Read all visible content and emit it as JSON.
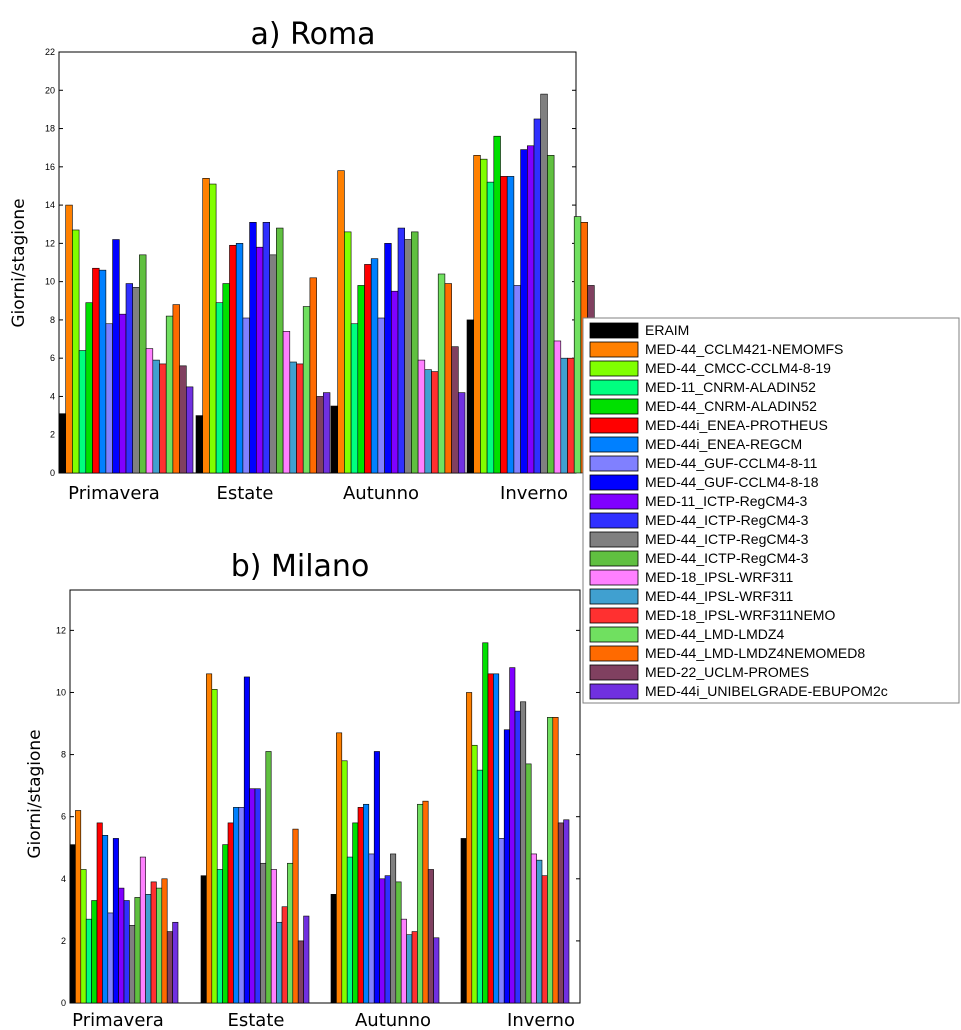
{
  "chart_data": [
    {
      "type": "bar",
      "title": "a) Roma",
      "ylabel": "Giorni/stagione",
      "xlabel": "",
      "ylim": [
        0,
        22
      ],
      "yticks": [
        0,
        2,
        4,
        6,
        8,
        10,
        12,
        14,
        16,
        18,
        20,
        22
      ],
      "categories": [
        "Primavera",
        "Estate",
        "Autunno",
        "Inverno"
      ],
      "series_values": [
        [
          3.1,
          3.0,
          3.5,
          8.0
        ],
        [
          14.0,
          15.4,
          15.8,
          16.6
        ],
        [
          12.7,
          15.1,
          12.6,
          16.4
        ],
        [
          6.4,
          8.9,
          7.8,
          15.2
        ],
        [
          8.9,
          9.9,
          9.8,
          17.6
        ],
        [
          10.7,
          11.9,
          10.9,
          15.5
        ],
        [
          10.6,
          12.0,
          11.2,
          15.5
        ],
        [
          7.8,
          8.1,
          8.1,
          9.8
        ],
        [
          12.2,
          13.1,
          12.0,
          16.9
        ],
        [
          8.3,
          11.8,
          9.5,
          17.1
        ],
        [
          9.9,
          13.1,
          12.8,
          18.5
        ],
        [
          9.7,
          11.4,
          12.2,
          19.8
        ],
        [
          11.4,
          12.8,
          12.6,
          16.6
        ],
        [
          6.5,
          7.4,
          5.9,
          6.9
        ],
        [
          5.9,
          5.8,
          5.4,
          6.0
        ],
        [
          5.7,
          5.7,
          5.3,
          6.0
        ],
        [
          8.2,
          8.7,
          10.4,
          13.4
        ],
        [
          8.8,
          10.2,
          9.9,
          13.1
        ],
        [
          5.6,
          4.0,
          6.6,
          9.8
        ],
        [
          4.5,
          4.2,
          4.2,
          null
        ]
      ]
    },
    {
      "type": "bar",
      "title": "b) Milano",
      "ylabel": "Giorni/stagione",
      "xlabel": "",
      "ylim": [
        0,
        13.3
      ],
      "yticks": [
        0,
        2,
        4,
        6,
        8,
        10,
        12
      ],
      "categories": [
        "Primavera",
        "Estate",
        "Autunno",
        "Inverno"
      ],
      "series_values": [
        [
          5.1,
          4.1,
          3.5,
          5.3
        ],
        [
          6.2,
          10.6,
          8.7,
          10.0
        ],
        [
          4.3,
          10.1,
          7.8,
          8.3
        ],
        [
          2.7,
          4.3,
          4.7,
          7.5
        ],
        [
          3.3,
          5.1,
          5.8,
          11.6
        ],
        [
          5.8,
          5.8,
          6.3,
          10.6
        ],
        [
          5.4,
          6.3,
          6.4,
          10.6
        ],
        [
          2.9,
          6.3,
          4.8,
          5.3
        ],
        [
          5.3,
          10.5,
          8.1,
          8.8
        ],
        [
          3.7,
          6.9,
          4.0,
          10.8
        ],
        [
          3.3,
          6.9,
          4.1,
          9.4
        ],
        [
          2.5,
          4.5,
          4.8,
          9.7
        ],
        [
          3.4,
          8.1,
          3.9,
          7.7
        ],
        [
          4.7,
          4.3,
          2.7,
          4.8
        ],
        [
          3.5,
          2.6,
          2.2,
          4.6
        ],
        [
          3.9,
          3.1,
          2.3,
          4.1
        ],
        [
          3.7,
          4.5,
          6.4,
          9.2
        ],
        [
          4.0,
          5.6,
          6.5,
          9.2
        ],
        [
          2.3,
          2.0,
          4.3,
          5.8
        ],
        [
          2.6,
          2.8,
          2.1,
          5.9
        ]
      ]
    }
  ],
  "legend": {
    "placement": "right",
    "entries": [
      {
        "label": "ERAIM",
        "color": "#000000"
      },
      {
        "label": "MED-44_CCLM421-NEMOMFS",
        "color": "#ff8000"
      },
      {
        "label": "MED-44_CMCC-CCLM4-8-19",
        "color": "#80ff00"
      },
      {
        "label": "MED-11_CNRM-ALADIN52",
        "color": "#00ff80"
      },
      {
        "label": "MED-44_CNRM-ALADIN52",
        "color": "#00e000"
      },
      {
        "label": "MED-44i_ENEA-PROTHEUS",
        "color": "#ff0000"
      },
      {
        "label": "MED-44i_ENEA-REGCM",
        "color": "#0080ff"
      },
      {
        "label": "MED-44_GUF-CCLM4-8-11",
        "color": "#8080ff"
      },
      {
        "label": "MED-44_GUF-CCLM4-8-18",
        "color": "#0000ff"
      },
      {
        "label": "MED-11_ICTP-RegCM4-3",
        "color": "#8000ff"
      },
      {
        "label": "MED-44_ICTP-RegCM4-3",
        "color": "#3030ff"
      },
      {
        "label": "MED-44_ICTP-RegCM4-3",
        "color": "#808080"
      },
      {
        "label": "MED-44_ICTP-RegCM4-3",
        "color": "#60c040"
      },
      {
        "label": "MED-18_IPSL-WRF311",
        "color": "#ff80ff"
      },
      {
        "label": "MED-44_IPSL-WRF311",
        "color": "#40a0d0"
      },
      {
        "label": "MED-18_IPSL-WRF311NEMO",
        "color": "#ff3030"
      },
      {
        "label": "MED-44_LMD-LMDZ4",
        "color": "#70e060"
      },
      {
        "label": "MED-44_LMD-LMDZ4NEMOMED8",
        "color": "#ff6a00"
      },
      {
        "label": "MED-22_UCLM-PROMES",
        "color": "#804060"
      },
      {
        "label": "MED-44i_UNIBELGRADE-EBUPOM2c",
        "color": "#7030e0"
      }
    ]
  }
}
